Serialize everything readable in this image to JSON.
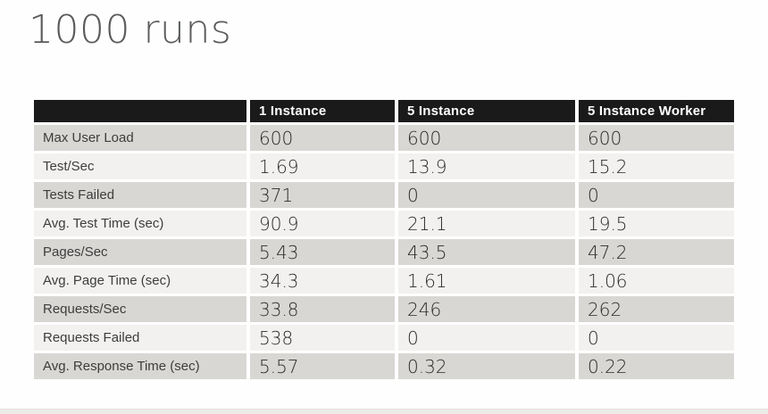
{
  "slide": {
    "title": "1000 runs"
  },
  "table": {
    "columns": [
      "",
      "1 Instance",
      "5 Instance",
      "5 Instance Worker"
    ],
    "rows": [
      {
        "label": "Max User Load",
        "values": [
          "600",
          "600",
          "600"
        ]
      },
      {
        "label": "Test/Sec",
        "values": [
          "1.69",
          "13.9",
          "15.2"
        ]
      },
      {
        "label": "Tests Failed",
        "values": [
          "371",
          "0",
          "0"
        ]
      },
      {
        "label": "Avg. Test Time (sec)",
        "values": [
          "90.9",
          "21.1",
          "19.5"
        ]
      },
      {
        "label": "Pages/Sec",
        "values": [
          "5.43",
          "43.5",
          "47.2"
        ]
      },
      {
        "label": "Avg. Page Time (sec)",
        "values": [
          "34.3",
          "1.61",
          "1.06"
        ]
      },
      {
        "label": "Requests/Sec",
        "values": [
          "33.8",
          "246",
          "262"
        ]
      },
      {
        "label": "Requests Failed",
        "values": [
          "538",
          "0",
          "0"
        ]
      },
      {
        "label": "Avg. Response Time (sec)",
        "values": [
          "5.57",
          "0.32",
          "0.22"
        ]
      }
    ]
  },
  "colors": {
    "header_bg": "#1a1a1a",
    "header_text": "#ffffff",
    "row_odd_bg": "#d9d7d4",
    "row_even_bg": "#f2f1ef",
    "title_text": "#595b5d"
  }
}
